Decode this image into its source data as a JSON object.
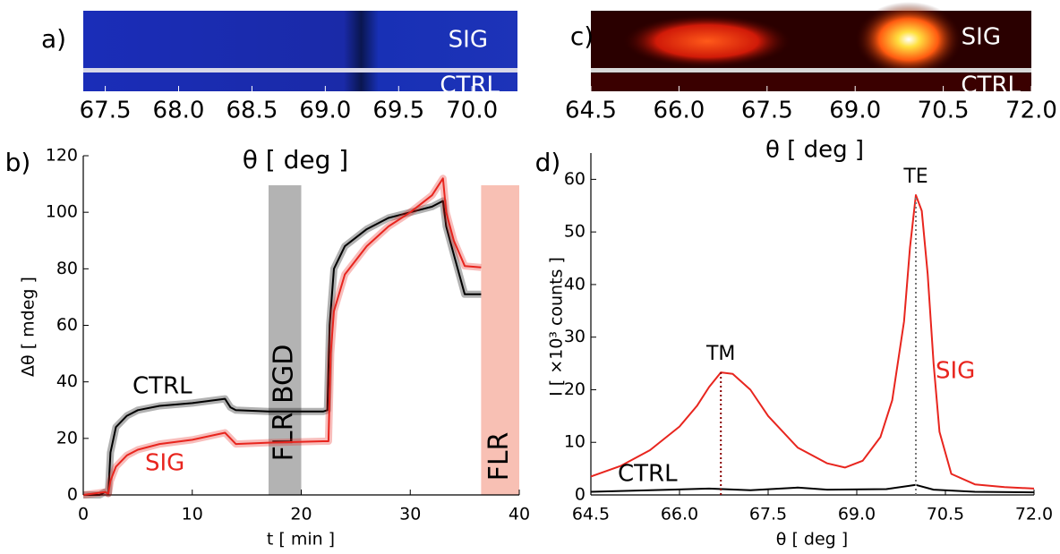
{
  "chart_data": [
    {
      "type": "image",
      "panel": "a)",
      "labels": [
        "SIG",
        "CTRL"
      ],
      "xlabel": "θ [ deg ]",
      "xlim": [
        67.35,
        70.31
      ],
      "xticks": [
        67.5,
        {
          "value": 68,
          "label": "68.0"
        },
        68.5,
        {
          "value": 69,
          "label": "69.0"
        },
        69.5,
        {
          "value": 70,
          "label": "70.0"
        }
      ]
    },
    {
      "type": "line",
      "panel": "b)",
      "xlabel": "t [ min ]",
      "ylabel": "Δθ [ mdeg ]",
      "xlim": [
        0,
        40
      ],
      "ylim": [
        0,
        120
      ],
      "xticks": [
        0,
        10,
        20,
        30,
        40
      ],
      "yticks": [
        0,
        20,
        40,
        60,
        80,
        100,
        120
      ],
      "regions": [
        {
          "label": "FLR BGD",
          "range": [
            17,
            20
          ],
          "color": "#b3b3b3"
        },
        {
          "label": "FLR",
          "range": [
            36.5,
            40
          ],
          "color": "#f8c0b4"
        }
      ],
      "series": [
        {
          "name": "CTRL",
          "color": "#000000",
          "x": [
            0,
            1.5,
            2,
            2.3,
            2.5,
            3,
            4,
            5,
            7,
            10,
            13,
            13.5,
            14,
            17,
            22,
            22.4,
            22.6,
            23,
            24,
            26,
            28,
            30,
            32,
            33,
            33.3,
            34,
            35,
            36.5
          ],
          "values": [
            0,
            0,
            1,
            0.5,
            15,
            24,
            28,
            30,
            31.5,
            32.5,
            34,
            31,
            30,
            29.5,
            29.5,
            30,
            60,
            80,
            88,
            94,
            98,
            100,
            102,
            104,
            95,
            85,
            71,
            71
          ]
        },
        {
          "name": "SIG",
          "color": "#e8251e",
          "x": [
            0,
            2,
            2.3,
            2.5,
            3,
            4,
            5,
            7,
            10,
            13,
            13.5,
            14,
            17,
            22,
            22.5,
            22.7,
            23,
            24,
            26,
            28,
            30,
            32,
            33,
            33.3,
            34,
            35,
            36.5
          ],
          "values": [
            0,
            1,
            0.5,
            5,
            10,
            14,
            16,
            18,
            19.5,
            22,
            20,
            18,
            18.5,
            19,
            19,
            50,
            65,
            78,
            88,
            95,
            100,
            106,
            112,
            100,
            90,
            81,
            80.5
          ]
        }
      ]
    },
    {
      "type": "image",
      "panel": "c)",
      "labels": [
        "SIG",
        "CTRL"
      ],
      "xlabel": "θ [ deg ]",
      "xlim": [
        64.5,
        72.0
      ],
      "xticks": [
        64.5,
        {
          "value": 66,
          "label": "66.0"
        },
        67.5,
        {
          "value": 69,
          "label": "69.0"
        },
        70.5,
        {
          "value": 72,
          "label": "72.0"
        }
      ]
    },
    {
      "type": "line",
      "panel": "d)",
      "xlabel": "θ [ deg ]",
      "ylabel": "I [ ×10³ counts ]",
      "xlim": [
        64.5,
        72.0
      ],
      "ylim": [
        0,
        65
      ],
      "xticks": [
        64.5,
        {
          "value": 66,
          "label": "66.0"
        },
        67.5,
        {
          "value": 69,
          "label": "69.0"
        },
        70.5,
        {
          "value": 72,
          "label": "72.0"
        }
      ],
      "yticks": [
        0,
        10,
        20,
        30,
        40,
        50,
        60
      ],
      "annotations": [
        {
          "text": "TM",
          "x": 66.7,
          "y": 23.3,
          "color": "#8b0000"
        },
        {
          "text": "TE",
          "x": 70.0,
          "y": 57,
          "color": "#777777"
        }
      ],
      "series": [
        {
          "name": "SIG",
          "color": "#e8251e",
          "x": [
            64.5,
            65,
            65.5,
            66,
            66.3,
            66.5,
            66.7,
            66.9,
            67.2,
            67.5,
            68,
            68.5,
            68.8,
            69.1,
            69.4,
            69.6,
            69.8,
            69.9,
            70,
            70.1,
            70.2,
            70.3,
            70.4,
            70.6,
            71,
            71.5,
            72
          ],
          "values": [
            3.5,
            5.5,
            8.5,
            13,
            17,
            20.5,
            23.3,
            23,
            20,
            15,
            9,
            6,
            5.2,
            6.5,
            11,
            18,
            33,
            47,
            57,
            54,
            42,
            25,
            12,
            4,
            2,
            1.5,
            1.2
          ]
        },
        {
          "name": "CTRL",
          "color": "#000000",
          "x": [
            64.5,
            65.5,
            66.5,
            67.2,
            68,
            68.5,
            69.5,
            70,
            70.3,
            71,
            72
          ],
          "values": [
            0.6,
            0.9,
            1.2,
            0.9,
            1.4,
            1,
            1.1,
            1.9,
            1,
            0.6,
            0.5
          ]
        }
      ]
    }
  ]
}
